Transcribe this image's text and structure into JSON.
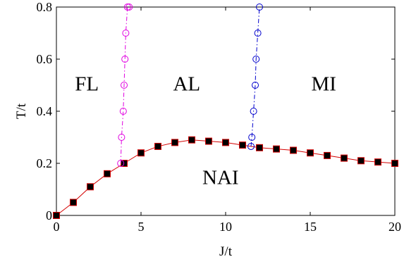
{
  "chart_data": {
    "type": "scatter",
    "xlabel": "J/t",
    "ylabel": "T/t",
    "xlim": [
      0,
      20
    ],
    "ylim": [
      0,
      0.8
    ],
    "xticks": [
      0,
      5,
      10,
      15,
      20
    ],
    "yticks": [
      0,
      0.2,
      0.4,
      0.6,
      0.8
    ],
    "xtick_labels": [
      "0",
      "5",
      "10",
      "15",
      "20"
    ],
    "ytick_labels": [
      "0",
      "0.2",
      "0.4",
      "0.6",
      "0.8"
    ],
    "grid": false,
    "series": [
      {
        "color": "#d40000",
        "marker": "filled-square",
        "marker_color": "#000000",
        "line_style": "solid",
        "x": [
          0,
          1,
          2,
          3,
          4,
          5,
          6,
          7,
          8,
          9,
          10,
          11,
          12,
          13,
          14,
          15,
          16,
          17,
          18,
          19,
          20
        ],
        "y": [
          0,
          0.05,
          0.11,
          0.16,
          0.2,
          0.24,
          0.265,
          0.28,
          0.29,
          0.285,
          0.28,
          0.27,
          0.26,
          0.255,
          0.25,
          0.24,
          0.23,
          0.22,
          0.21,
          0.205,
          0.2
        ]
      },
      {
        "color": "#e000e0",
        "marker": "open-circle",
        "line_style": "dash-dot",
        "x": [
          3.8,
          3.85,
          3.95,
          4.0,
          4.05,
          4.1,
          4.2,
          4.3
        ],
        "y": [
          0.2,
          0.3,
          0.4,
          0.5,
          0.6,
          0.7,
          0.8,
          0.8
        ]
      },
      {
        "color": "#0000cc",
        "marker": "open-circle",
        "line_style": "dash-dot",
        "x": [
          11.5,
          11.55,
          11.65,
          11.75,
          11.8,
          11.9,
          12.0
        ],
        "y": [
          0.265,
          0.3,
          0.4,
          0.5,
          0.6,
          0.7,
          0.8
        ]
      }
    ],
    "region_labels": [
      {
        "text": "FL",
        "x": 1.8,
        "y": 0.48
      },
      {
        "text": "AL",
        "x": 7.7,
        "y": 0.48
      },
      {
        "text": "MI",
        "x": 15.8,
        "y": 0.48
      },
      {
        "text": "NAI",
        "x": 9.7,
        "y": 0.12
      }
    ]
  }
}
